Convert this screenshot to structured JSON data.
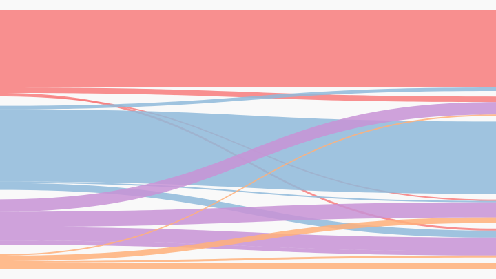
{
  "chart_data": {
    "type": "sankey",
    "left_nodes": [
      {
        "color": "#f87c7c"
      },
      {
        "color": "#8fbadb"
      },
      {
        "color": "#c893d6"
      },
      {
        "color": "#ffb07a"
      }
    ],
    "right_nodes": [
      {
        "color": "#f87c7c"
      },
      {
        "color": "#c893d6"
      },
      {
        "color": "#8fbadb"
      },
      {
        "color": "#c893d6"
      },
      {
        "color": "#c893d6"
      },
      {
        "color": "#ffb07a"
      }
    ],
    "links": [
      {
        "source": 0,
        "target": 0,
        "value": 112
      },
      {
        "source": 0,
        "target": 1,
        "value": 8
      },
      {
        "source": 0,
        "target": 4,
        "value": 3
      },
      {
        "source": 0,
        "target": 3,
        "value": 2
      },
      {
        "source": 1,
        "target": 0,
        "value": 5
      },
      {
        "source": 1,
        "target": 2,
        "value": 105
      },
      {
        "source": 1,
        "target": 3,
        "value": 2
      },
      {
        "source": 1,
        "target": 4,
        "value": 10
      },
      {
        "source": 2,
        "target": 1,
        "value": 18
      },
      {
        "source": 2,
        "target": 3,
        "value": 22
      },
      {
        "source": 2,
        "target": 4,
        "value": 20
      },
      {
        "source": 2,
        "target": 4,
        "value": 6
      },
      {
        "source": 3,
        "target": 1,
        "value": 2
      },
      {
        "source": 3,
        "target": 3,
        "value": 8
      },
      {
        "source": 3,
        "target": 4,
        "value": 3
      },
      {
        "source": 3,
        "target": 5,
        "value": 8
      }
    ]
  }
}
